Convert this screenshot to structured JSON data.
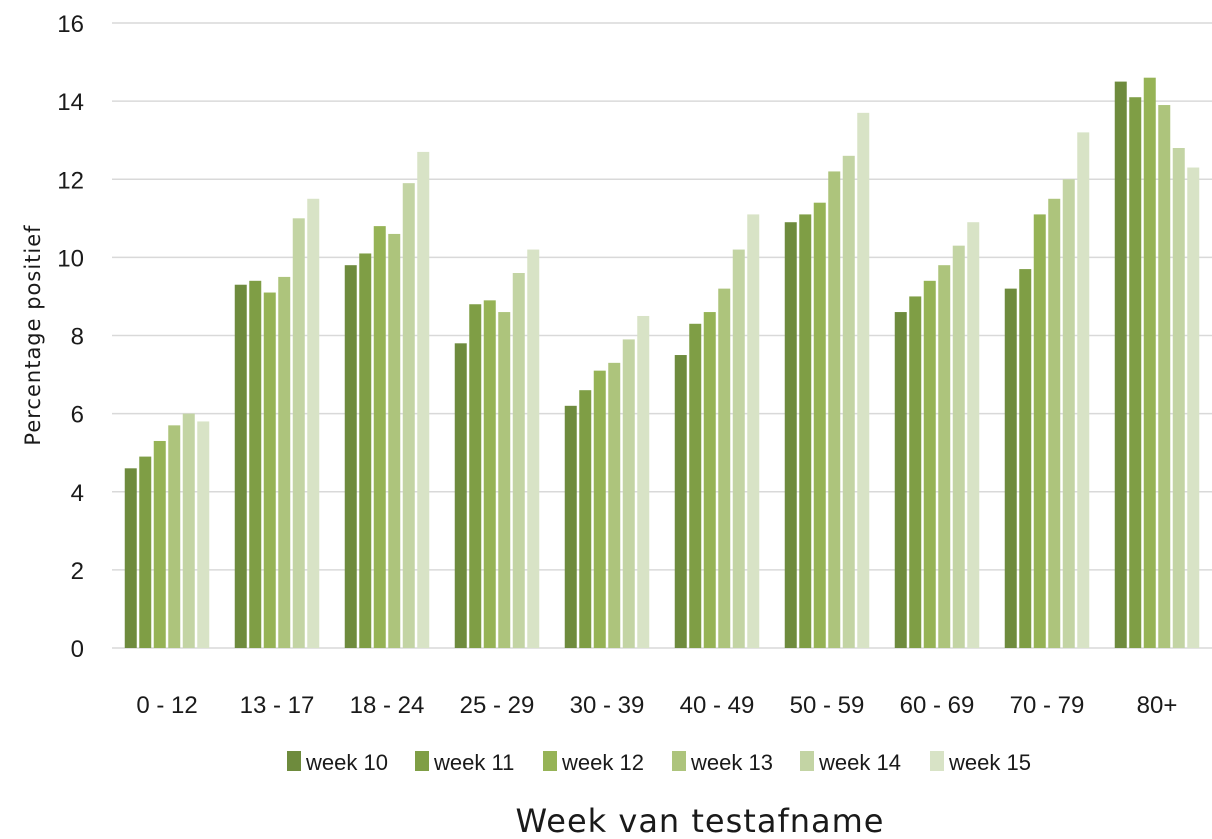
{
  "chart_data": {
    "type": "bar",
    "xlabel": "Week van testafname",
    "ylabel": "Percentage positief",
    "ylim": [
      0,
      16
    ],
    "yticks": [
      "0",
      "2",
      "4",
      "6",
      "8",
      "10",
      "12",
      "14",
      "16"
    ],
    "grid": true,
    "legend_position": "bottom",
    "categories": [
      "0 - 12",
      "13 - 17",
      "18 - 24",
      "25 - 29",
      "30 - 39",
      "40 - 49",
      "50 - 59",
      "60 - 69",
      "70 - 79",
      "80+"
    ],
    "series": [
      {
        "name": "week 10",
        "color": "#6e8b3d",
        "values": [
          4.6,
          9.3,
          9.8,
          7.8,
          6.2,
          7.5,
          10.9,
          8.6,
          9.2,
          14.5
        ]
      },
      {
        "name": "week 11",
        "color": "#7f9e45",
        "values": [
          4.9,
          9.4,
          10.1,
          8.8,
          6.6,
          8.3,
          11.1,
          9.0,
          9.7,
          14.1
        ]
      },
      {
        "name": "week 12",
        "color": "#96b356",
        "values": [
          5.3,
          9.1,
          10.8,
          8.9,
          7.1,
          8.6,
          11.4,
          9.4,
          11.1,
          14.6
        ]
      },
      {
        "name": "week 13",
        "color": "#adc47c",
        "values": [
          5.7,
          9.5,
          10.6,
          8.6,
          7.3,
          9.2,
          12.2,
          9.8,
          11.5,
          13.9
        ]
      },
      {
        "name": "week 14",
        "color": "#c3d4a4",
        "values": [
          6.0,
          11.0,
          11.9,
          9.6,
          7.9,
          10.2,
          12.6,
          10.3,
          12.0,
          12.8
        ]
      },
      {
        "name": "week 15",
        "color": "#d8e3c6",
        "values": [
          5.8,
          11.5,
          12.7,
          10.2,
          8.5,
          11.1,
          13.7,
          10.9,
          13.2,
          12.3
        ]
      }
    ]
  }
}
